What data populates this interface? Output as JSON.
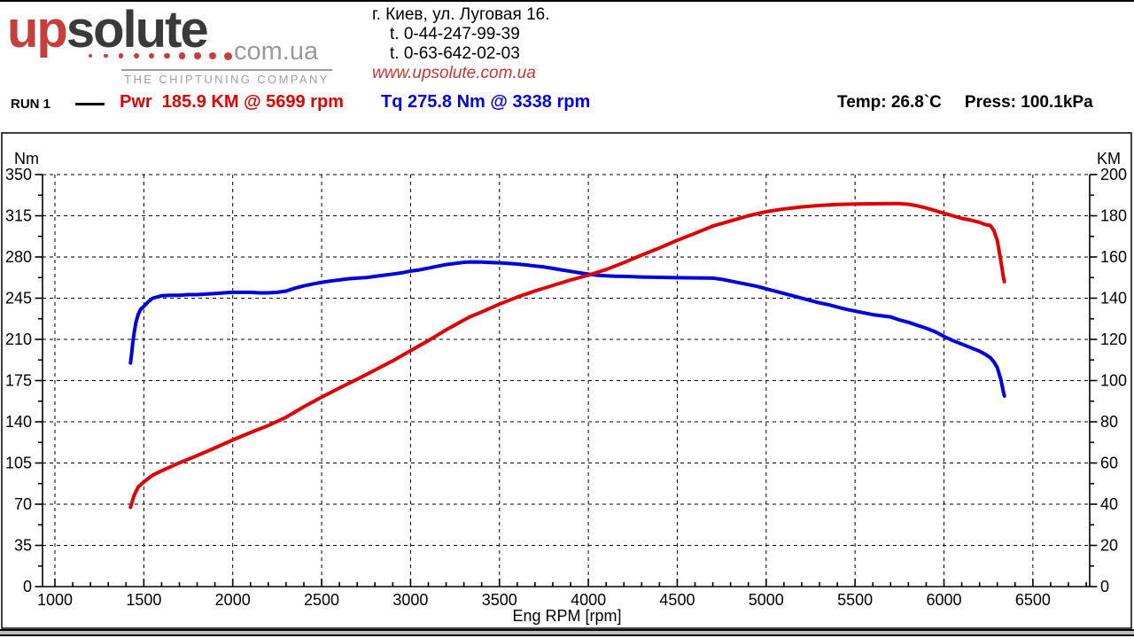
{
  "header": {
    "logo": {
      "word_up": "up",
      "word_solute": "solute",
      "domain": "com.ua",
      "tagline": "THE CHIPTUNING COMPANY",
      "dot_count": 10,
      "accent_red": "#c4403f",
      "dark": "#3a3a3a",
      "gray": "#9a9a9a"
    },
    "address": {
      "line1": "г. Киев, ул. Луговая 16.",
      "phone1": "t. 0-44-247-99-39",
      "phone2": "t. 0-63-642-02-03",
      "website": "www.upsolute.com.ua"
    }
  },
  "legend": {
    "run_label": "RUN 1",
    "power_label": "Pwr  185.9 KM @ 5699 rpm",
    "torque_label": "Tq 275.8 Nm @ 3338 rpm",
    "temp_label": "Temp: 26.8`C",
    "press_label": "Press: 100.1kPa",
    "power_color": "#dd0000",
    "torque_color": "#0000dd"
  },
  "chart_data": {
    "type": "line",
    "title": "",
    "xlabel": "Eng RPM [rpm]",
    "run": "RUN 1",
    "conditions": {
      "temp_c": 26.8,
      "pressure_kpa": 100.1
    },
    "grid": "dashed",
    "x_range": [
      930,
      6820
    ],
    "x_ticks": [
      1000,
      1500,
      2000,
      2500,
      3000,
      3500,
      4000,
      4500,
      5000,
      5500,
      6000,
      6500
    ],
    "x_minor_step": 100,
    "y_left": {
      "unit": "Nm",
      "range": [
        0,
        350
      ],
      "ticks": [
        0,
        35,
        70,
        105,
        140,
        175,
        210,
        245,
        280,
        315,
        350
      ]
    },
    "y_right": {
      "unit": "KM",
      "range": [
        0,
        200
      ],
      "ticks": [
        0,
        20,
        40,
        60,
        80,
        100,
        120,
        140,
        160,
        180,
        200
      ]
    },
    "series": [
      {
        "name": "Torque",
        "unit": "Nm",
        "axis": "left",
        "color": "#0000dd",
        "peak": {
          "value": 275.8,
          "unit": "Nm",
          "rpm": 3338
        },
        "points": [
          [
            1425,
            190
          ],
          [
            1430,
            196
          ],
          [
            1437,
            206
          ],
          [
            1445,
            215
          ],
          [
            1455,
            224
          ],
          [
            1468,
            231
          ],
          [
            1482,
            235.5
          ],
          [
            1500,
            238
          ],
          [
            1525,
            242
          ],
          [
            1550,
            245
          ],
          [
            1600,
            247
          ],
          [
            1650,
            247.5
          ],
          [
            1700,
            247.5
          ],
          [
            1750,
            248
          ],
          [
            1800,
            248
          ],
          [
            1850,
            248.5
          ],
          [
            1900,
            249
          ],
          [
            1950,
            249.5
          ],
          [
            2000,
            250
          ],
          [
            2050,
            250
          ],
          [
            2100,
            250
          ],
          [
            2150,
            249.5
          ],
          [
            2200,
            249.5
          ],
          [
            2250,
            250
          ],
          [
            2300,
            251
          ],
          [
            2350,
            253.5
          ],
          [
            2400,
            255.5
          ],
          [
            2450,
            257
          ],
          [
            2500,
            258.5
          ],
          [
            2550,
            259.5
          ],
          [
            2600,
            260.5
          ],
          [
            2650,
            261.5
          ],
          [
            2700,
            262
          ],
          [
            2750,
            262.5
          ],
          [
            2800,
            263.5
          ],
          [
            2850,
            264.5
          ],
          [
            2900,
            265.5
          ],
          [
            2950,
            266.5
          ],
          [
            3000,
            268
          ],
          [
            3050,
            269
          ],
          [
            3100,
            270.5
          ],
          [
            3150,
            272
          ],
          [
            3200,
            273.5
          ],
          [
            3250,
            274.5
          ],
          [
            3300,
            275.5
          ],
          [
            3338,
            275.8
          ],
          [
            3400,
            275.6
          ],
          [
            3450,
            275.3
          ],
          [
            3500,
            275
          ],
          [
            3550,
            274.5
          ],
          [
            3600,
            274
          ],
          [
            3650,
            273.2
          ],
          [
            3700,
            272.3
          ],
          [
            3750,
            271.5
          ],
          [
            3800,
            270.3
          ],
          [
            3850,
            269
          ],
          [
            3900,
            267.8
          ],
          [
            3950,
            266.5
          ],
          [
            4000,
            265.5
          ],
          [
            4050,
            264.5
          ],
          [
            4100,
            264
          ],
          [
            4150,
            263.7
          ],
          [
            4200,
            263.5
          ],
          [
            4300,
            263
          ],
          [
            4400,
            262.7
          ],
          [
            4500,
            262.4
          ],
          [
            4600,
            262.2
          ],
          [
            4700,
            262
          ],
          [
            4750,
            261
          ],
          [
            4800,
            259.5
          ],
          [
            4850,
            258
          ],
          [
            4900,
            256.5
          ],
          [
            4950,
            255
          ],
          [
            5000,
            253
          ],
          [
            5050,
            251
          ],
          [
            5100,
            249
          ],
          [
            5150,
            247
          ],
          [
            5200,
            245
          ],
          [
            5250,
            243
          ],
          [
            5300,
            241
          ],
          [
            5350,
            239.5
          ],
          [
            5400,
            237.5
          ],
          [
            5450,
            235.5
          ],
          [
            5500,
            234
          ],
          [
            5550,
            232.5
          ],
          [
            5600,
            231
          ],
          [
            5650,
            230
          ],
          [
            5699,
            229.1
          ],
          [
            5750,
            226.5
          ],
          [
            5800,
            224.5
          ],
          [
            5850,
            222
          ],
          [
            5900,
            219.5
          ],
          [
            5950,
            216.5
          ],
          [
            6000,
            212.5
          ],
          [
            6050,
            209
          ],
          [
            6100,
            206
          ],
          [
            6150,
            203
          ],
          [
            6200,
            200
          ],
          [
            6230,
            197.5
          ],
          [
            6260,
            194.5
          ],
          [
            6280,
            191
          ],
          [
            6300,
            186
          ],
          [
            6320,
            176
          ],
          [
            6335,
            165
          ],
          [
            6340,
            162
          ]
        ]
      },
      {
        "name": "Power",
        "unit": "KM",
        "axis": "right",
        "color": "#dd0000",
        "peak": {
          "value": 185.9,
          "unit": "KM",
          "rpm": 5699
        },
        "points": [
          [
            1425,
            38.5
          ],
          [
            1430,
            39.9
          ],
          [
            1445,
            44.2
          ],
          [
            1468,
            48.3
          ],
          [
            1500,
            50.8
          ],
          [
            1550,
            54.1
          ],
          [
            1600,
            56.2
          ],
          [
            1700,
            60.1
          ],
          [
            1800,
            63.6
          ],
          [
            1900,
            67.3
          ],
          [
            2000,
            71.2
          ],
          [
            2100,
            74.8
          ],
          [
            2200,
            78.2
          ],
          [
            2300,
            82.2
          ],
          [
            2400,
            87.3
          ],
          [
            2500,
            92.0
          ],
          [
            2600,
            96.4
          ],
          [
            2700,
            100.7
          ],
          [
            2800,
            105.1
          ],
          [
            2900,
            109.6
          ],
          [
            3000,
            114.5
          ],
          [
            3100,
            119.4
          ],
          [
            3200,
            124.6
          ],
          [
            3300,
            129.4
          ],
          [
            3338,
            131.1
          ],
          [
            3400,
            133.3
          ],
          [
            3500,
            137.1
          ],
          [
            3600,
            140.5
          ],
          [
            3700,
            143.5
          ],
          [
            3800,
            146.2
          ],
          [
            3900,
            148.8
          ],
          [
            4000,
            151.2
          ],
          [
            4100,
            153.9
          ],
          [
            4200,
            157.3
          ],
          [
            4300,
            160.9
          ],
          [
            4400,
            164.4
          ],
          [
            4500,
            168.1
          ],
          [
            4600,
            171.5
          ],
          [
            4700,
            175
          ],
          [
            4800,
            177.5
          ],
          [
            4900,
            180
          ],
          [
            5000,
            182
          ],
          [
            5100,
            183.3
          ],
          [
            5200,
            184.3
          ],
          [
            5300,
            185
          ],
          [
            5400,
            185.5
          ],
          [
            5500,
            185.7
          ],
          [
            5600,
            185.8
          ],
          [
            5650,
            185.85
          ],
          [
            5699,
            185.9
          ],
          [
            5750,
            185.9
          ],
          [
            5800,
            185.6
          ],
          [
            5850,
            184.8
          ],
          [
            5900,
            183.8
          ],
          [
            5950,
            182.5
          ],
          [
            6000,
            181.2
          ],
          [
            6050,
            180
          ],
          [
            6100,
            178.7
          ],
          [
            6150,
            177.9
          ],
          [
            6200,
            176.8
          ],
          [
            6230,
            175.8
          ],
          [
            6260,
            175.3
          ],
          [
            6280,
            173
          ],
          [
            6300,
            168
          ],
          [
            6320,
            158
          ],
          [
            6335,
            150
          ],
          [
            6340,
            148
          ]
        ]
      }
    ]
  }
}
